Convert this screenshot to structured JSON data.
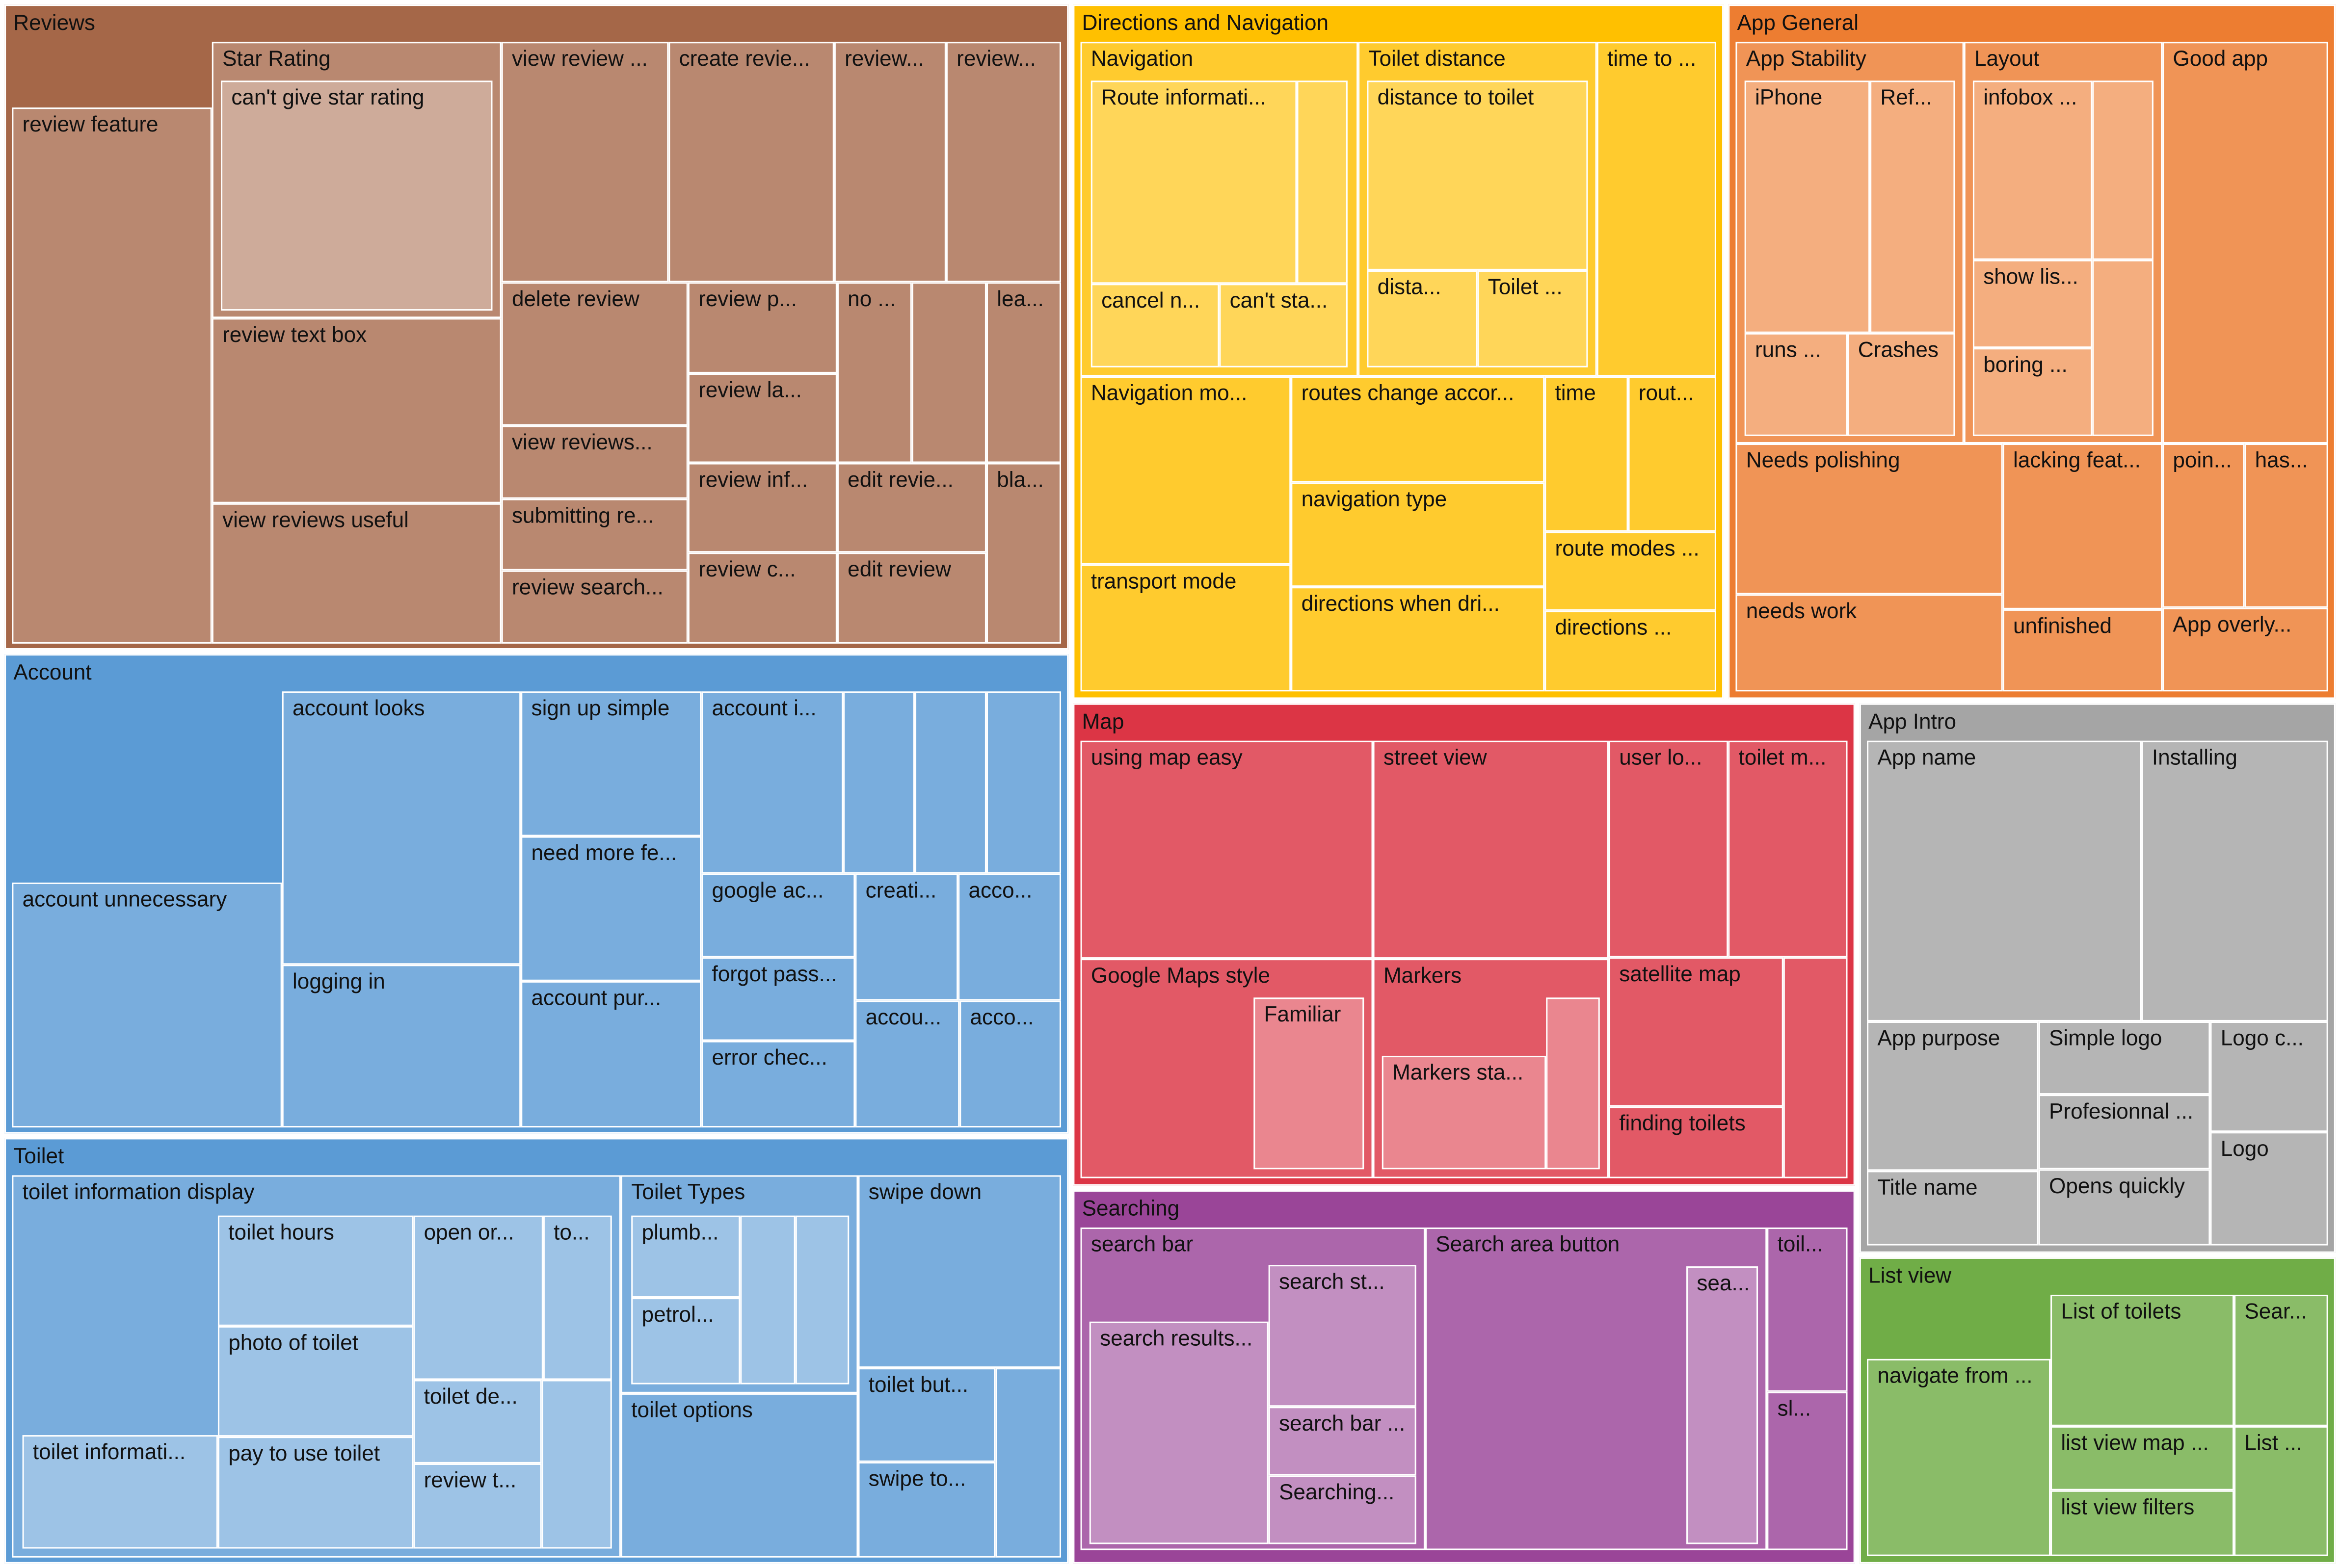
{
  "chart_data": {
    "type": "treemap",
    "title": "",
    "colors": {
      "Reviews": "#a56748",
      "Account": "#5b9bd5",
      "Toilet": "#5b9bd5",
      "Directions and Navigation": "#ffc000",
      "App General": "#ed7d31",
      "Map": "#dc3545",
      "Searching": "#9a4598",
      "App Intro": "#a5a5a5",
      "List view": "#70ad47"
    },
    "root": [
      {
        "name": "Reviews",
        "children": [
          {
            "name": "review feature",
            "label": "review feature"
          },
          {
            "name": "Star Rating",
            "label": "Star Rating",
            "children": [
              {
                "name": "can't give star rating",
                "label": "can't give star rating"
              }
            ]
          },
          {
            "name": "review text box",
            "label": "review text box"
          },
          {
            "name": "view reviews useful",
            "label": "view reviews useful"
          },
          {
            "name": "view review",
            "label": "view review ..."
          },
          {
            "name": "create review",
            "label": "create revie..."
          },
          {
            "name": "review 1",
            "label": "review..."
          },
          {
            "name": "review 2",
            "label": "review..."
          },
          {
            "name": "delete review",
            "label": "delete review"
          },
          {
            "name": "view reviews",
            "label": "view reviews..."
          },
          {
            "name": "submitting review",
            "label": "submitting re..."
          },
          {
            "name": "review search",
            "label": "review search..."
          },
          {
            "name": "review p",
            "label": "review p..."
          },
          {
            "name": "review la",
            "label": "review la..."
          },
          {
            "name": "review inf",
            "label": "review inf..."
          },
          {
            "name": "review c",
            "label": "review c..."
          },
          {
            "name": "no",
            "label": "no ..."
          },
          {
            "name": "unlabeled review",
            "label": ""
          },
          {
            "name": "lea",
            "label": "lea..."
          },
          {
            "name": "edit review 1",
            "label": "edit revie..."
          },
          {
            "name": "edit review",
            "label": "edit review"
          },
          {
            "name": "bla",
            "label": "bla..."
          }
        ]
      },
      {
        "name": "Account",
        "children": [
          {
            "name": "account unnecessary",
            "label": "account unnecessary"
          },
          {
            "name": "account looks",
            "label": "account looks"
          },
          {
            "name": "logging in",
            "label": "logging in"
          },
          {
            "name": "sign up simple",
            "label": "sign up simple"
          },
          {
            "name": "need more fe",
            "label": "need more fe..."
          },
          {
            "name": "account pur",
            "label": "account pur..."
          },
          {
            "name": "account i",
            "label": "account i..."
          },
          {
            "name": "unlabeled a1",
            "label": ""
          },
          {
            "name": "unlabeled a2",
            "label": ""
          },
          {
            "name": "unlabeled a3",
            "label": ""
          },
          {
            "name": "google ac",
            "label": "google ac..."
          },
          {
            "name": "forgot pass",
            "label": "forgot pass..."
          },
          {
            "name": "error chec",
            "label": "error chec..."
          },
          {
            "name": "creati",
            "label": "creati..."
          },
          {
            "name": "acco 1",
            "label": "acco..."
          },
          {
            "name": "accou",
            "label": "accou..."
          },
          {
            "name": "acco 2",
            "label": "acco..."
          }
        ]
      },
      {
        "name": "Toilet",
        "children": [
          {
            "name": "toilet information display",
            "label": "toilet information display",
            "children": [
              {
                "name": "toilet informati",
                "label": "toilet informati..."
              },
              {
                "name": "toilet hours",
                "label": "toilet hours"
              },
              {
                "name": "photo of toilet",
                "label": "photo of toilet"
              },
              {
                "name": "pay to use toilet",
                "label": "pay to use toilet"
              },
              {
                "name": "open or",
                "label": "open or..."
              },
              {
                "name": "to",
                "label": "to..."
              },
              {
                "name": "toilet de",
                "label": "toilet de..."
              },
              {
                "name": "review t",
                "label": "review t..."
              },
              {
                "name": "unlabeled t1",
                "label": ""
              }
            ]
          },
          {
            "name": "Toilet Types",
            "label": "Toilet Types",
            "children": [
              {
                "name": "plumb",
                "label": "plumb..."
              },
              {
                "name": "petrol",
                "label": "petrol..."
              },
              {
                "name": "unlabeled tt1",
                "label": ""
              },
              {
                "name": "unlabeled tt2",
                "label": ""
              }
            ]
          },
          {
            "name": "toilet options",
            "label": "toilet options"
          },
          {
            "name": "swipe down",
            "label": "swipe down"
          },
          {
            "name": "toilet but",
            "label": "toilet but..."
          },
          {
            "name": "swipe to",
            "label": "swipe to..."
          },
          {
            "name": "unlabeled t2",
            "label": ""
          }
        ]
      },
      {
        "name": "Directions and Navigation",
        "children": [
          {
            "name": "Navigation",
            "label": "Navigation",
            "children": [
              {
                "name": "Route informati",
                "label": "Route informati..."
              },
              {
                "name": "unlabeled n1",
                "label": ""
              },
              {
                "name": "cancel n",
                "label": "cancel n..."
              },
              {
                "name": "can't sta",
                "label": "can't sta..."
              }
            ]
          },
          {
            "name": "Toilet distance",
            "label": "Toilet distance",
            "children": [
              {
                "name": "distance to toilet",
                "label": "distance to toilet"
              },
              {
                "name": "dista",
                "label": "dista..."
              },
              {
                "name": "Toilet",
                "label": "Toilet ..."
              }
            ]
          },
          {
            "name": "time to",
            "label": "time to ..."
          },
          {
            "name": "Navigation mo",
            "label": "Navigation mo..."
          },
          {
            "name": "transport mode",
            "label": "transport mode"
          },
          {
            "name": "routes change accor",
            "label": "routes change accor..."
          },
          {
            "name": "navigation type",
            "label": "navigation type"
          },
          {
            "name": "directions when dri",
            "label": "directions when dri..."
          },
          {
            "name": "time",
            "label": "time"
          },
          {
            "name": "rout",
            "label": "rout..."
          },
          {
            "name": "route modes",
            "label": "route modes ..."
          },
          {
            "name": "directions",
            "label": "directions ..."
          }
        ]
      },
      {
        "name": "App General",
        "children": [
          {
            "name": "App Stability",
            "label": "App Stability",
            "children": [
              {
                "name": "iPhone",
                "label": "iPhone"
              },
              {
                "name": "Ref",
                "label": "Ref..."
              },
              {
                "name": "runs",
                "label": "runs ..."
              },
              {
                "name": "Crashes",
                "label": "Crashes"
              }
            ]
          },
          {
            "name": "Layout",
            "label": "Layout",
            "children": [
              {
                "name": "infobox",
                "label": "infobox ..."
              },
              {
                "name": "unlabeled l1",
                "label": ""
              },
              {
                "name": "show lis",
                "label": "show lis..."
              },
              {
                "name": "boring",
                "label": "boring ..."
              },
              {
                "name": "unlabeled l2",
                "label": ""
              }
            ]
          },
          {
            "name": "Good app",
            "label": "Good app"
          },
          {
            "name": "Needs polishing",
            "label": "Needs polishing"
          },
          {
            "name": "needs work",
            "label": "needs work"
          },
          {
            "name": "lacking feat",
            "label": "lacking feat..."
          },
          {
            "name": "unfinished",
            "label": "unfinished"
          },
          {
            "name": "poin",
            "label": "poin..."
          },
          {
            "name": "has",
            "label": "has..."
          },
          {
            "name": "App overly",
            "label": "App overly..."
          }
        ]
      },
      {
        "name": "Map",
        "children": [
          {
            "name": "using map easy",
            "label": "using map easy"
          },
          {
            "name": "street view",
            "label": "street view"
          },
          {
            "name": "user lo",
            "label": "user lo..."
          },
          {
            "name": "toilet m",
            "label": "toilet m..."
          },
          {
            "name": "Google Maps style",
            "label": "Google Maps style",
            "children": [
              {
                "name": "Familiar",
                "label": "Familiar"
              }
            ]
          },
          {
            "name": "Markers",
            "label": "Markers",
            "children": [
              {
                "name": "Markers sta",
                "label": "Markers sta..."
              },
              {
                "name": "unlabeled m1",
                "label": ""
              }
            ]
          },
          {
            "name": "satellite map",
            "label": "satellite map"
          },
          {
            "name": "finding toilets",
            "label": "finding toilets"
          },
          {
            "name": "unlabeled m2",
            "label": ""
          }
        ]
      },
      {
        "name": "Searching",
        "children": [
          {
            "name": "search bar",
            "label": "search bar",
            "children": [
              {
                "name": "search results",
                "label": "search results..."
              },
              {
                "name": "search st",
                "label": "search st..."
              },
              {
                "name": "search bar 2",
                "label": "search bar ..."
              },
              {
                "name": "Searching",
                "label": "Searching..."
              }
            ]
          },
          {
            "name": "Search area button",
            "label": "Search area button",
            "children": [
              {
                "name": "sea",
                "label": "sea..."
              }
            ]
          },
          {
            "name": "toil",
            "label": "toil..."
          },
          {
            "name": "sl",
            "label": "sl..."
          }
        ]
      },
      {
        "name": "App Intro",
        "children": [
          {
            "name": "App name",
            "label": "App name"
          },
          {
            "name": "Installing",
            "label": "Installing"
          },
          {
            "name": "App purpose",
            "label": "App purpose"
          },
          {
            "name": "Title name",
            "label": "Title name"
          },
          {
            "name": "Simple logo",
            "label": "Simple logo"
          },
          {
            "name": "Profesionnal",
            "label": "Profesionnal ..."
          },
          {
            "name": "Opens quickly",
            "label": "Opens quickly"
          },
          {
            "name": "Logo c",
            "label": "Logo c..."
          },
          {
            "name": "Logo",
            "label": "Logo"
          }
        ]
      },
      {
        "name": "List view",
        "children": [
          {
            "name": "navigate from",
            "label": "navigate from ..."
          },
          {
            "name": "List of toilets",
            "label": "List of toilets"
          },
          {
            "name": "Sear",
            "label": "Sear..."
          },
          {
            "name": "list view map",
            "label": "list view map ..."
          },
          {
            "name": "list view filters",
            "label": "list view filters"
          },
          {
            "name": "List",
            "label": "List ..."
          }
        ]
      }
    ]
  }
}
